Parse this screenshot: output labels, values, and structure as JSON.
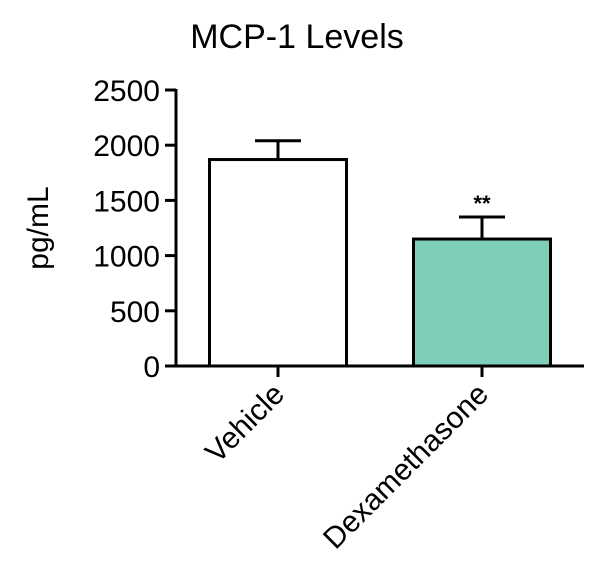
{
  "chart_data": {
    "type": "bar",
    "title": "MCP-1 Levels",
    "xlabel": "",
    "ylabel": "pg/mL",
    "ylim": [
      0,
      2500
    ],
    "yticks": [
      0,
      500,
      1000,
      1500,
      2000,
      2500
    ],
    "categories": [
      "Vehicle",
      "Dexamethasone"
    ],
    "values": [
      1870,
      1150
    ],
    "errors": [
      170,
      200
    ],
    "bar_colors": [
      "#ffffff",
      "#7dcfba"
    ],
    "annotations": [
      "",
      "**"
    ],
    "grid": false,
    "legend": "none"
  }
}
